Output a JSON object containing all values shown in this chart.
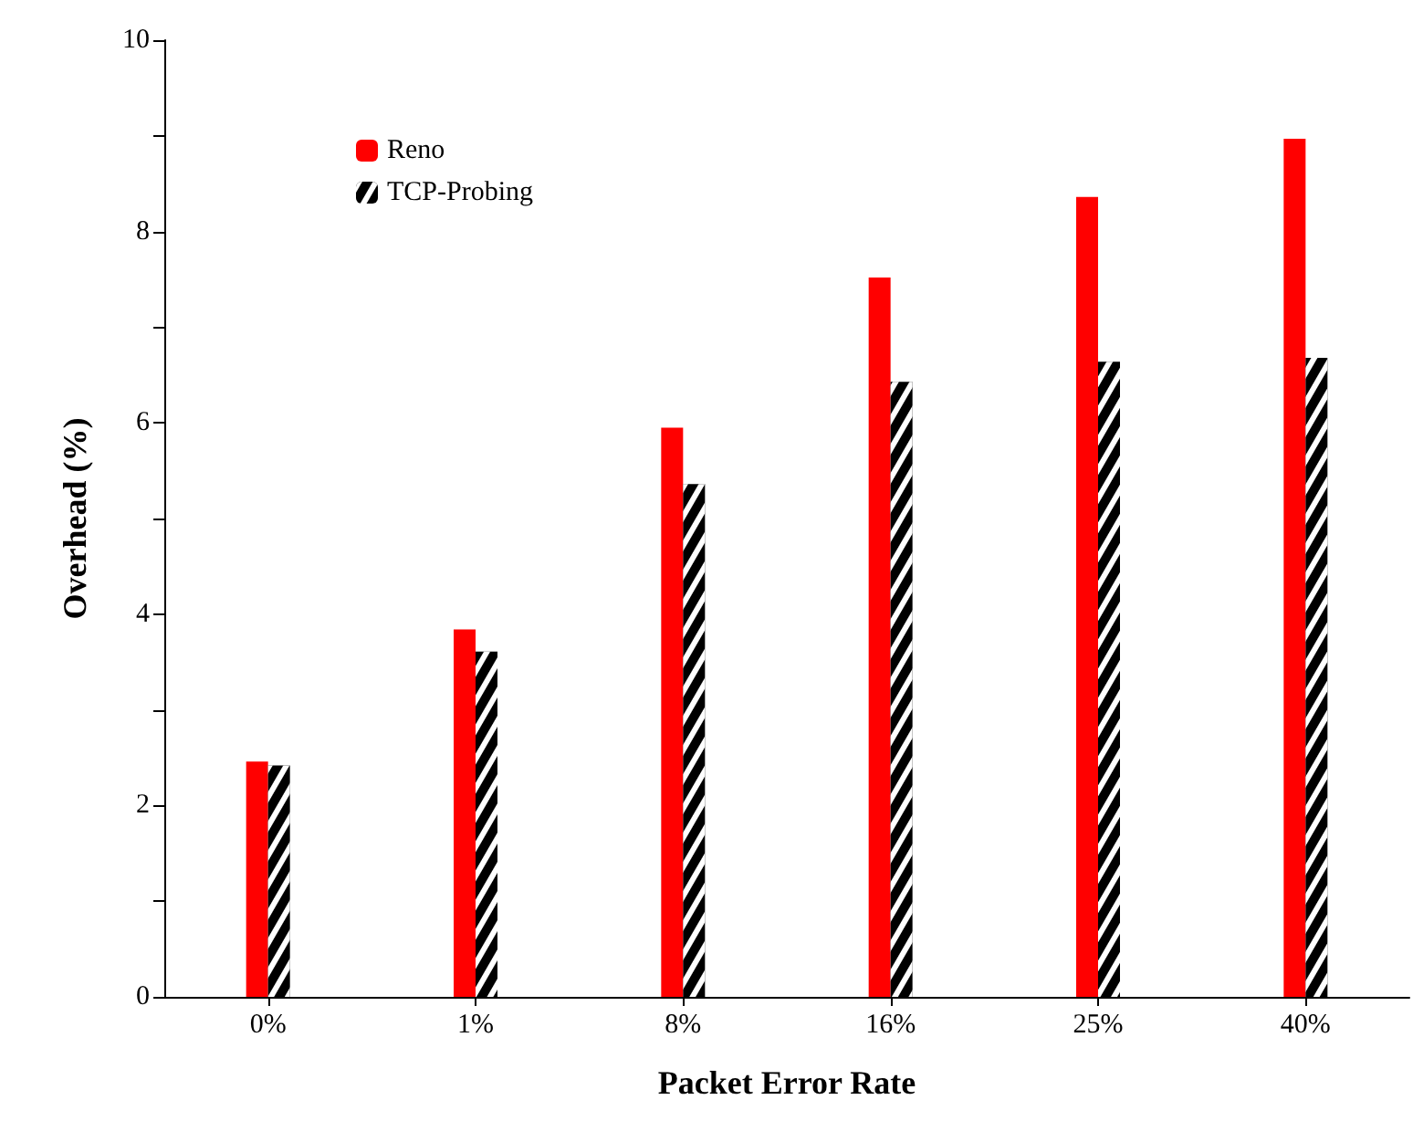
{
  "chart_data": {
    "type": "bar",
    "xlabel": "Packet Error Rate",
    "ylabel": "Overhead (%)",
    "categories": [
      "0%",
      "1%",
      "8%",
      "16%",
      "25%",
      "40%"
    ],
    "series": [
      {
        "name": "Reno",
        "color": "#ff0000",
        "values": [
          2.46,
          3.84,
          5.95,
          7.52,
          8.36,
          8.97
        ]
      },
      {
        "name": "TCP-Probing",
        "color": "#000000",
        "values": [
          2.42,
          3.61,
          5.36,
          6.43,
          6.64,
          6.68
        ]
      }
    ],
    "ylim": [
      0,
      10
    ],
    "yticks": [
      0,
      {
        "value": 1,
        "label": null
      },
      2,
      {
        "value": 3,
        "label": null
      },
      4,
      {
        "value": 5,
        "label": null
      },
      6,
      {
        "value": 7,
        "label": null
      },
      8,
      {
        "value": 9,
        "label": null
      },
      10
    ],
    "grid": false,
    "legend": "top left"
  }
}
